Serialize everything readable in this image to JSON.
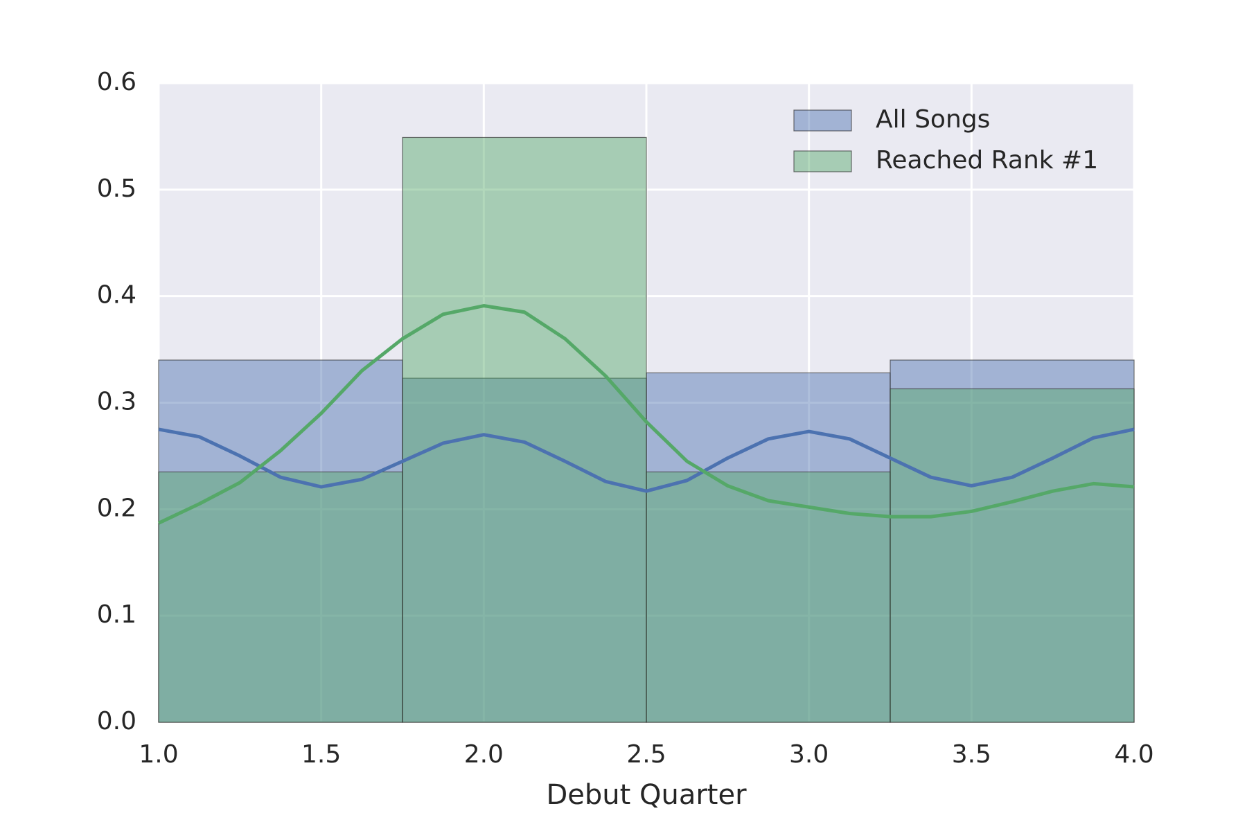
{
  "chart_data": {
    "type": "histogram",
    "xlabel": "Debut Quarter",
    "bins": [
      1.0,
      1.75,
      2.5,
      3.25,
      4.0
    ],
    "series": [
      {
        "name": "All Songs",
        "color": "#4c72b0",
        "values": [
          0.34,
          0.323,
          0.328,
          0.34
        ],
        "kde": [
          0.275,
          0.268,
          0.25,
          0.23,
          0.221,
          0.228,
          0.245,
          0.262,
          0.27,
          0.263,
          0.245,
          0.226,
          0.217,
          0.227,
          0.248,
          0.266,
          0.273,
          0.266,
          0.248,
          0.23,
          0.222,
          0.23,
          0.248,
          0.267,
          0.275
        ]
      },
      {
        "name": "Reached Rank #1",
        "color": "#55a868",
        "values": [
          0.235,
          0.549,
          0.235,
          0.313
        ],
        "kde": [
          0.187,
          0.205,
          0.225,
          0.255,
          0.29,
          0.33,
          0.36,
          0.383,
          0.391,
          0.385,
          0.36,
          0.325,
          0.282,
          0.245,
          0.222,
          0.208,
          0.202,
          0.196,
          0.193,
          0.193,
          0.198,
          0.207,
          0.217,
          0.224,
          0.221
        ]
      }
    ],
    "kde_x": [
      1.0,
      1.125,
      1.25,
      1.375,
      1.5,
      1.625,
      1.75,
      1.875,
      2.0,
      2.125,
      2.25,
      2.375,
      2.5,
      2.625,
      2.75,
      2.875,
      3.0,
      3.125,
      3.25,
      3.375,
      3.5,
      3.625,
      3.75,
      3.875,
      4.0
    ],
    "xlim": [
      1.0,
      4.0
    ],
    "xticks": [
      {
        "value": 1,
        "label": "1.0"
      },
      1.5,
      {
        "value": 2,
        "label": "2.0"
      },
      2.5,
      {
        "value": 3,
        "label": "3.0"
      },
      3.5,
      {
        "value": 4,
        "label": "4.0"
      }
    ],
    "ylim": [
      0,
      0.6
    ],
    "yticks": [
      {
        "value": 0,
        "label": "0.0"
      },
      0.1,
      0.2,
      0.3,
      0.4,
      0.5,
      0.6
    ],
    "grid": true,
    "legend": "upper right"
  }
}
